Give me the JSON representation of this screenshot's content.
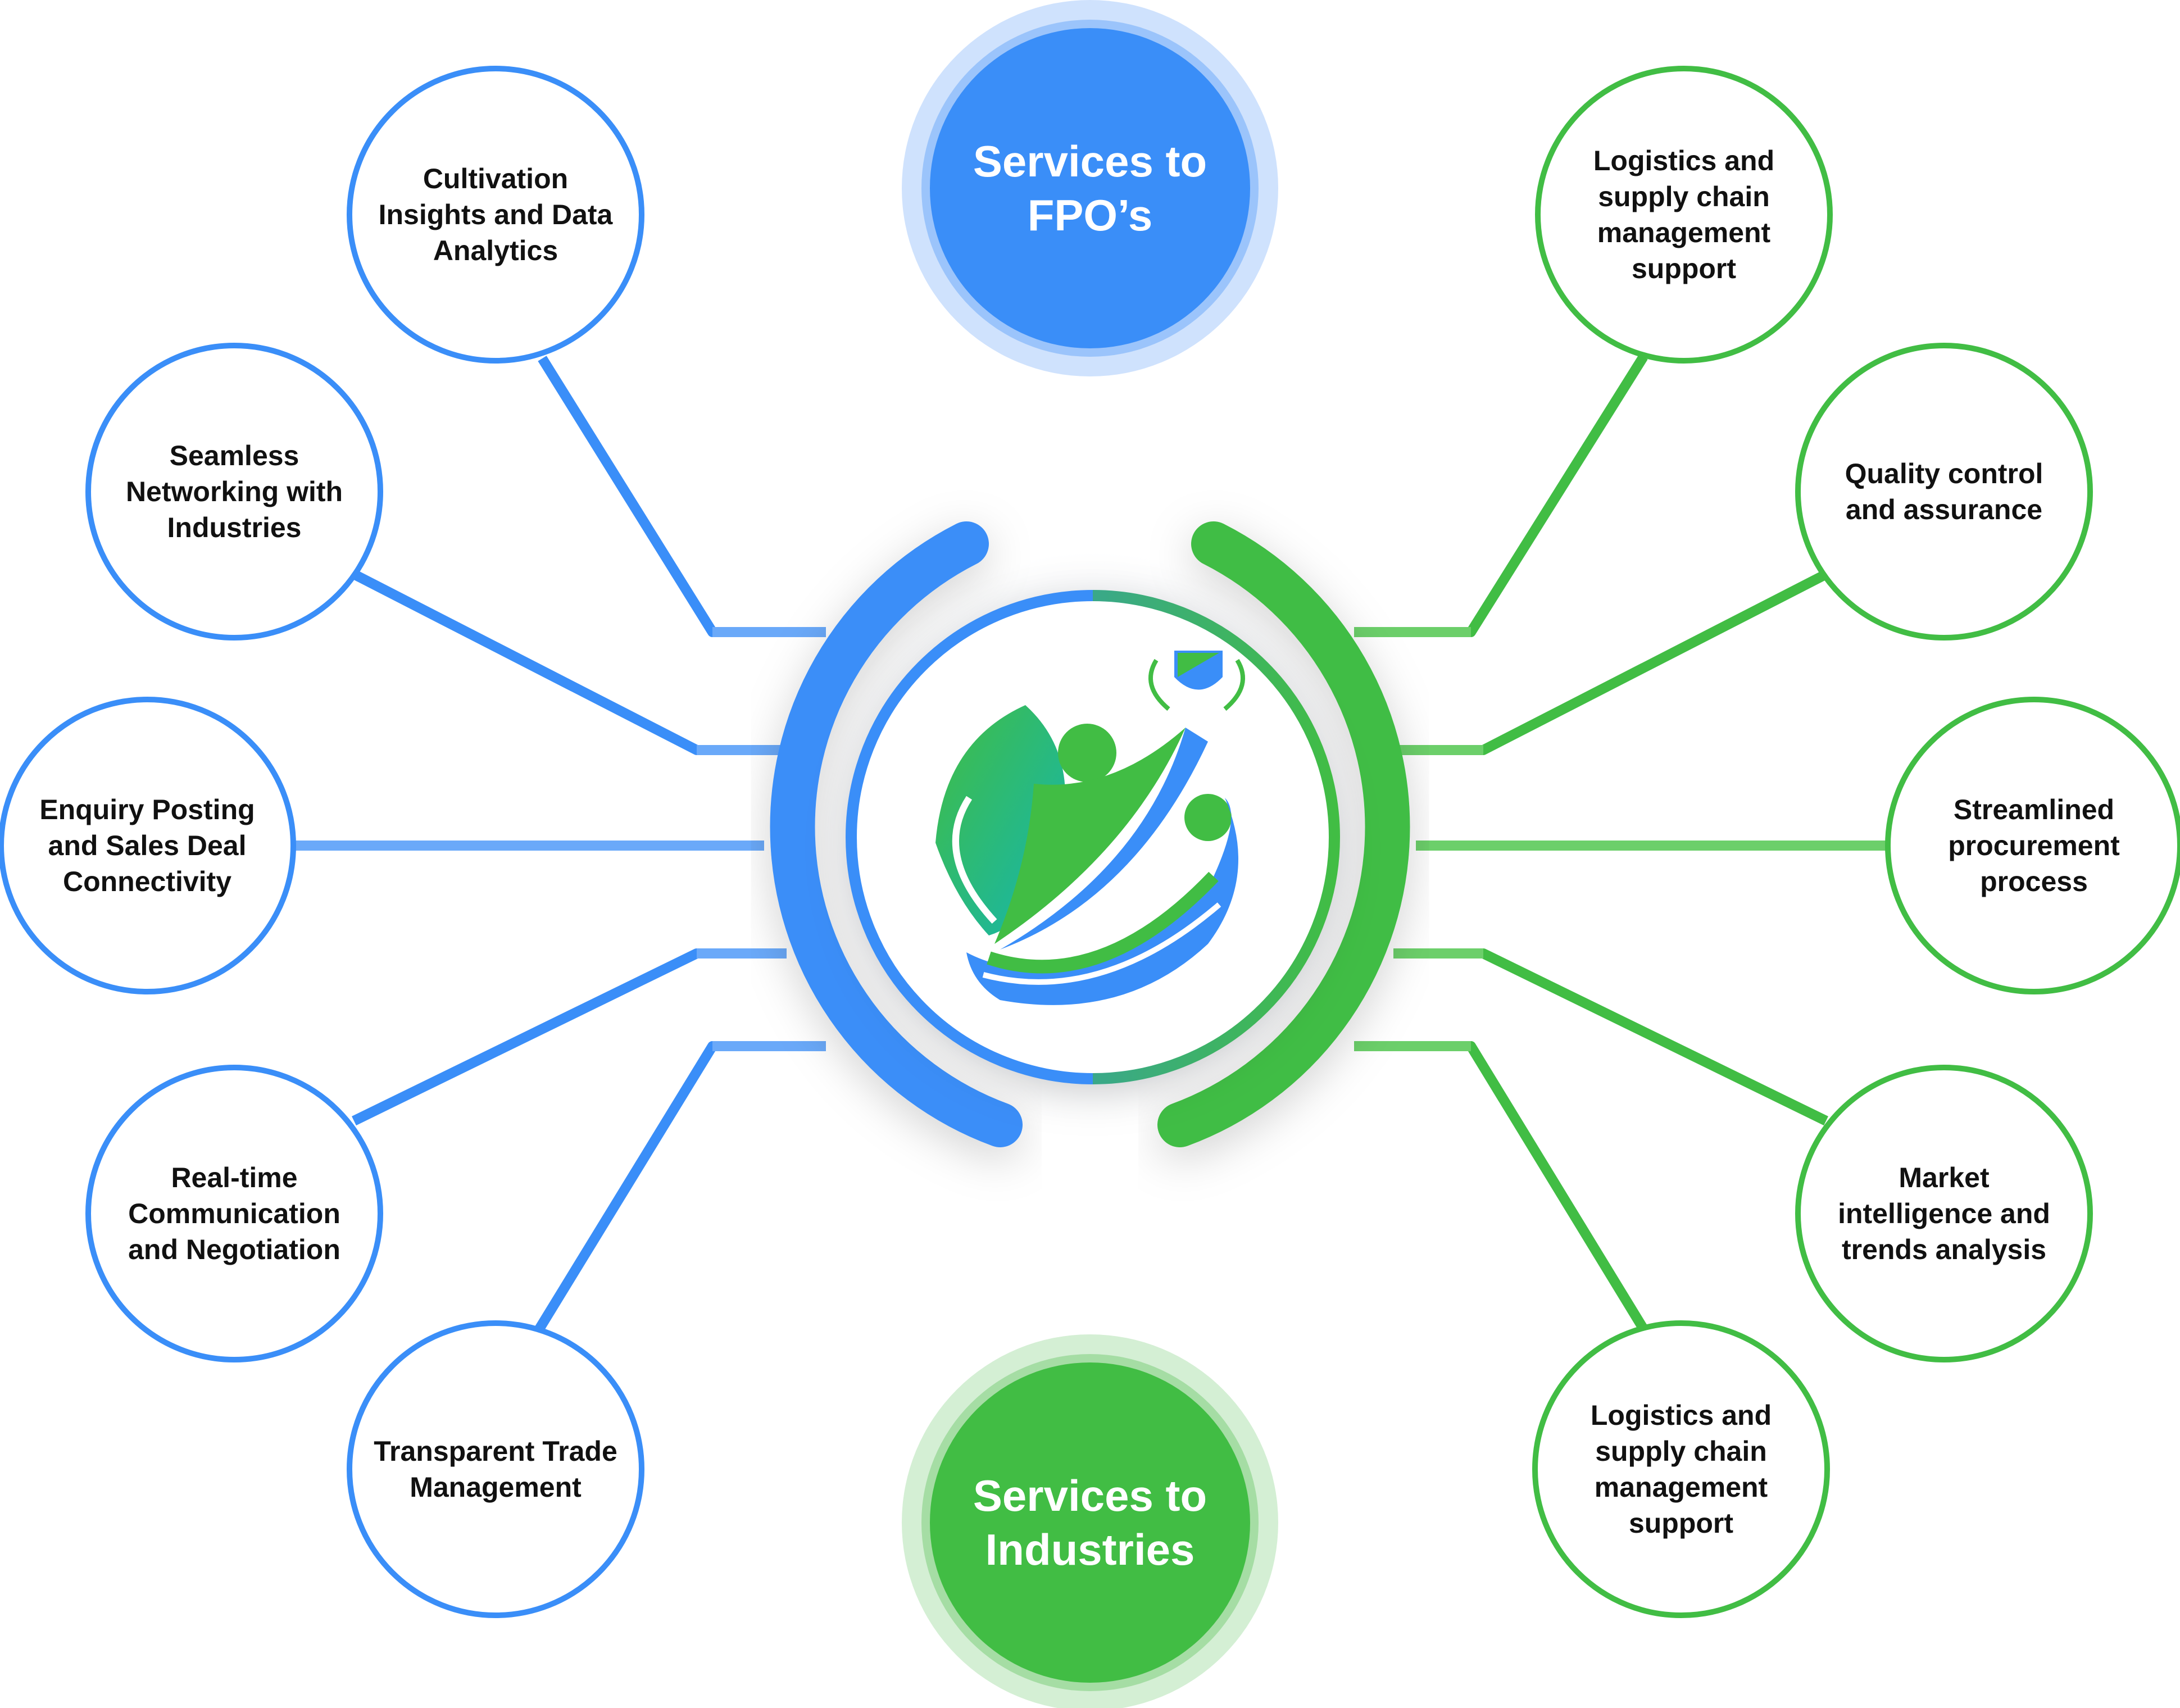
{
  "colors": {
    "fpo": "#3a8ef8",
    "fpo_light": "#6aa9f9",
    "industry": "#41bd44",
    "industry_light": "#6ccf6a",
    "text": "#111111",
    "hub_text": "#ffffff"
  },
  "hubs": {
    "fpo": "Services to FPO’s",
    "industries": "Services to Industries"
  },
  "center_logo": "fpo-industry-logo-icon",
  "fpo_services": [
    "Cultivation Insights and Data Analytics",
    "Seamless Networking with Industries",
    "Enquiry Posting and Sales Deal Connectivity",
    "Real-time Communication and Negotiation",
    "Transparent Trade Management"
  ],
  "industry_services": [
    "Logistics and supply chain management support",
    "Quality control and assurance",
    "Streamlined procurement process",
    "Market intelligence and trends analysis",
    "Logistics and supply chain management support"
  ]
}
